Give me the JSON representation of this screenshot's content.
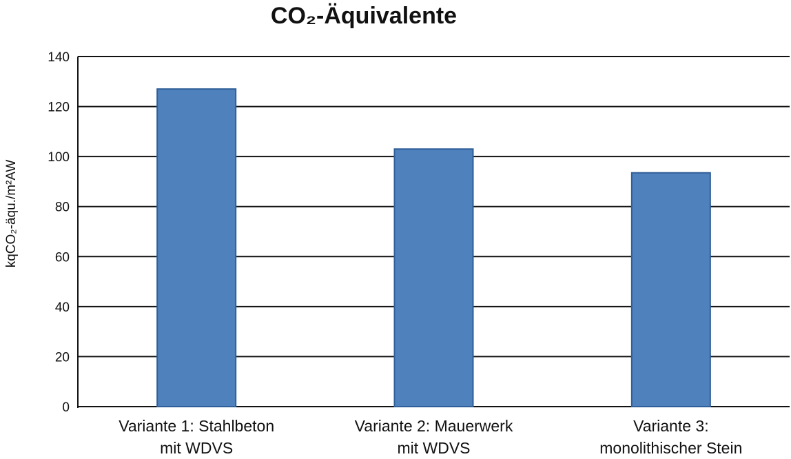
{
  "chart_data": {
    "type": "bar",
    "title": "CO₂-Äquivalente",
    "ylabel": "kqCO₂-äqu./m²AW",
    "xlabel": "",
    "categories": [
      [
        "Variante 1: Stahlbeton",
        "mit WDVS"
      ],
      [
        "Variante 2: Mauerwerk",
        "mit WDVS"
      ],
      [
        "Variante 3:",
        "monolithischer Stein"
      ]
    ],
    "values": [
      127,
      103,
      93.5
    ],
    "ylim": [
      0,
      140
    ],
    "yticks": [
      0,
      20,
      40,
      60,
      80,
      100,
      120,
      140
    ],
    "grid": true,
    "legend": "none",
    "colors": {
      "bar": "#4f81bd",
      "bar_edge": "#2f5e98"
    }
  }
}
